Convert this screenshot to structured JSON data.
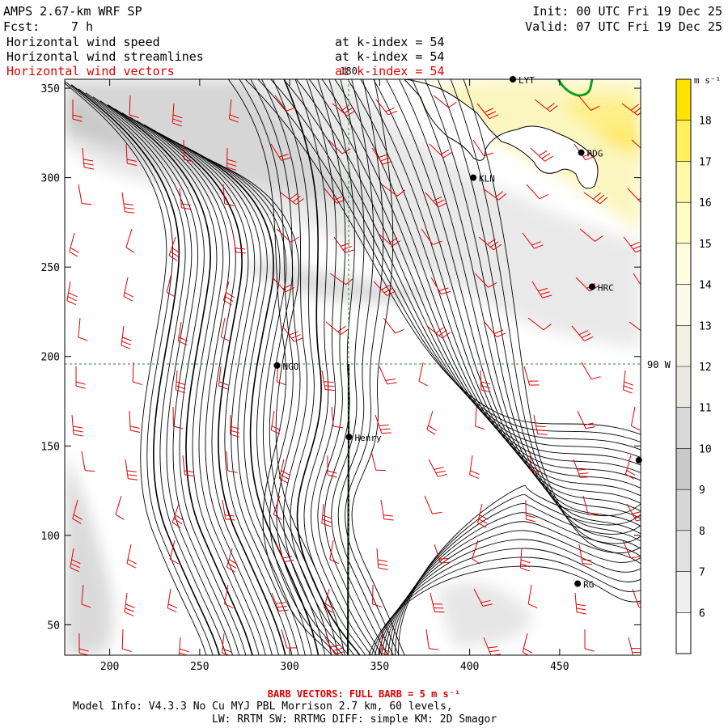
{
  "header": {
    "model": "AMPS 2.67-km WRF SP",
    "fcst_label": "Fcst:",
    "fcst_value": "7 h",
    "init": "Init: 00 UTC Fri 19 Dec 25",
    "valid": "Valid: 07 UTC Fri 19 Dec 25",
    "fields": [
      {
        "name": "Horizontal wind speed",
        "level": "at k-index =  54",
        "color": "#000000"
      },
      {
        "name": "Horizontal wind streamlines",
        "level": "at k-index =  54",
        "color": "#000000"
      },
      {
        "name": "Horizontal wind vectors",
        "level": "at k-index =  54",
        "color": "#e00000"
      }
    ]
  },
  "chart_data": {
    "type": "contour",
    "title": "Horizontal wind speed, streamlines and vectors at k-index = 54",
    "xlim": [
      175,
      495
    ],
    "ylim": [
      33,
      355
    ],
    "x_ticks": [
      200,
      250,
      300,
      350,
      400,
      450
    ],
    "y_ticks": [
      50,
      100,
      150,
      200,
      250,
      300,
      350
    ],
    "meridian_label": "180",
    "meridian_x": 332,
    "parallel_label": "90 W",
    "parallel_y": 195,
    "colorbar": {
      "unit": "m s⁻¹",
      "levels": [
        18,
        17,
        16,
        15,
        14,
        13,
        12,
        11,
        10,
        9,
        8,
        7,
        6
      ],
      "colors": [
        "#ffe400",
        "#fff15a",
        "#fff8a6",
        "#fffcc6",
        "#fffde0",
        "#fbfbed",
        "#f1f1e6",
        "#e9e9e2",
        "#d9d9d9",
        "#c9c9c9",
        "#d6d6d6",
        "#e2e2e2",
        "#efefef",
        "#ffffff"
      ]
    },
    "stations": [
      {
        "name": "LYT",
        "x": 424,
        "y": 355
      },
      {
        "name": "RDG",
        "x": 462,
        "y": 314
      },
      {
        "name": "KLN",
        "x": 402,
        "y": 300
      },
      {
        "name": "HRC",
        "x": 468,
        "y": 239
      },
      {
        "name": "NGO",
        "x": 293,
        "y": 195
      },
      {
        "name": "Henry",
        "x": 333,
        "y": 155
      },
      {
        "name": "",
        "x": 494,
        "y": 142
      },
      {
        "name": "RG",
        "x": 460,
        "y": 73
      }
    ]
  },
  "footer": {
    "barb_note": "BARB VECTORS:  FULL BARB = 5 m s⁻¹",
    "model_info": "Model Info: V4.3.3   No Cu   MYJ PBL  Morrison          2.7 km,  60 levels,",
    "physics": "LW: RRTM SW: RRTMG   DIFF: simple KM: 2D Smagor"
  }
}
